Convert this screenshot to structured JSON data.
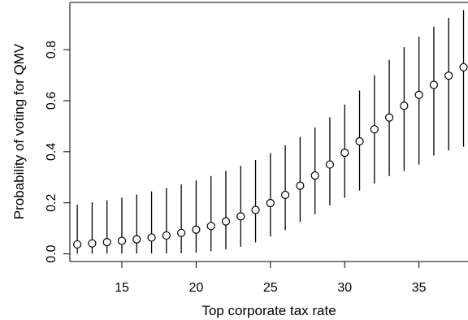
{
  "chart_data": {
    "type": "scatter",
    "title": "",
    "xlabel": "Top corporate tax rate",
    "ylabel": "Probability of voting for QMV",
    "xlim": [
      11.5,
      38.3
    ],
    "ylim": [
      -0.03,
      0.985
    ],
    "x_ticks": [
      15,
      20,
      25,
      30,
      35
    ],
    "y_ticks": [
      0.0,
      0.2,
      0.4,
      0.6,
      0.8
    ],
    "x_tick_labels": [
      "15",
      "20",
      "25",
      "30",
      "35"
    ],
    "y_tick_labels": [
      "0.0",
      "0.2",
      "0.4",
      "0.6",
      "0.8"
    ],
    "grid": false,
    "legend": "none",
    "color": "#000000",
    "series": [
      {
        "x": [
          12,
          13,
          14,
          15,
          16,
          17,
          18,
          19,
          20,
          21,
          22,
          23,
          24,
          25,
          26,
          27,
          28,
          29,
          30,
          31,
          32,
          33,
          34,
          35,
          36,
          37,
          38
        ],
        "y": [
          0.037,
          0.041,
          0.046,
          0.051,
          0.057,
          0.064,
          0.072,
          0.082,
          0.095,
          0.109,
          0.127,
          0.147,
          0.172,
          0.199,
          0.231,
          0.267,
          0.307,
          0.35,
          0.396,
          0.441,
          0.488,
          0.534,
          0.58,
          0.623,
          0.662,
          0.698,
          0.731
        ],
        "lower": [
          0.001,
          0.001,
          0.001,
          0.001,
          0.002,
          0.002,
          0.002,
          0.003,
          0.005,
          0.01,
          0.018,
          0.028,
          0.045,
          0.068,
          0.093,
          0.125,
          0.155,
          0.19,
          0.22,
          0.248,
          0.275,
          0.305,
          0.325,
          0.35,
          0.385,
          0.405,
          0.42
        ],
        "upper": [
          0.192,
          0.202,
          0.21,
          0.22,
          0.232,
          0.245,
          0.258,
          0.272,
          0.288,
          0.305,
          0.325,
          0.345,
          0.368,
          0.395,
          0.425,
          0.458,
          0.495,
          0.535,
          0.585,
          0.64,
          0.7,
          0.76,
          0.81,
          0.85,
          0.89,
          0.925,
          0.955
        ]
      }
    ]
  }
}
